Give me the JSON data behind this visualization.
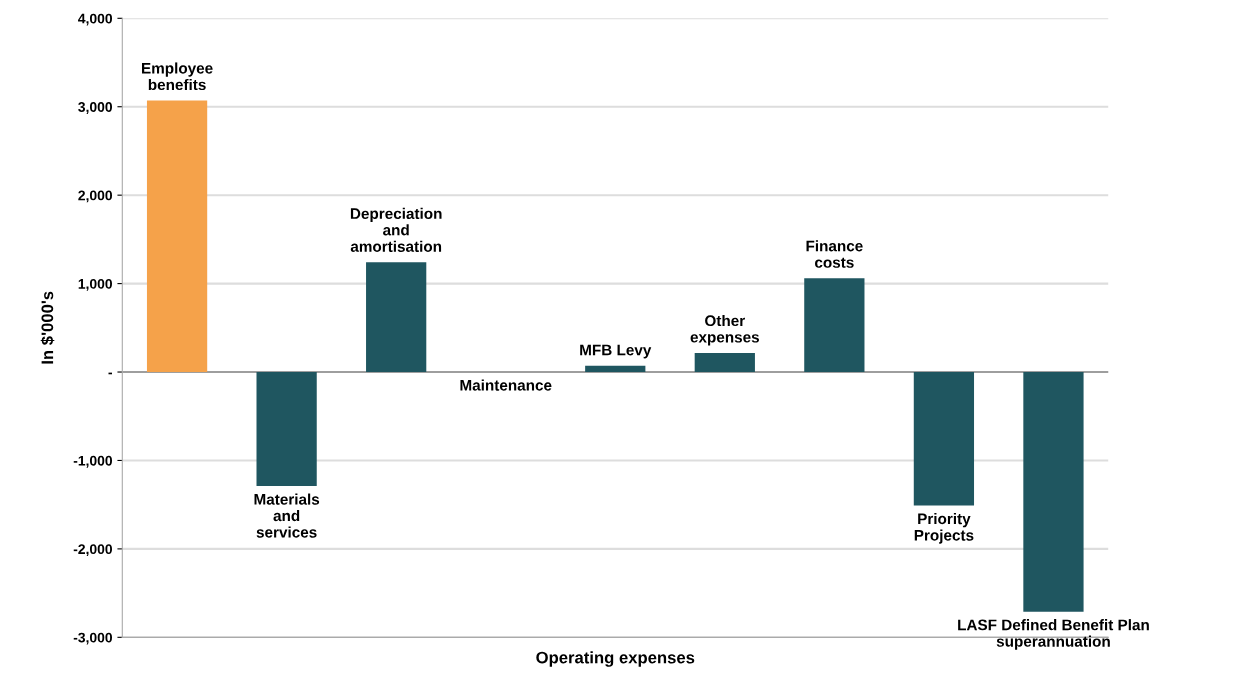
{
  "chart_data": {
    "type": "bar",
    "xlabel": "Operating expenses",
    "ylabel": "In $'000's",
    "categories": [
      "Employee\nbenefits",
      "Materials\nand\nservices",
      "Depreciation\nand\namortisation",
      "Maintenance",
      "MFB Levy",
      "Other\nexpenses",
      "Finance\ncosts",
      "Priority\nProjects",
      "LASF Defined Benefit Plan\nsuperannuation"
    ],
    "values": [
      3070,
      -1290,
      1240,
      0,
      70,
      215,
      1060,
      -1510,
      -2710
    ],
    "colors": [
      "#f5a24a",
      "#1f5660",
      "#1f5660",
      "#1f5660",
      "#1f5660",
      "#1f5660",
      "#1f5660",
      "#1f5660",
      "#1f5660"
    ],
    "ylim": [
      -3000,
      4000
    ],
    "yticks": [
      {
        "value": -3000,
        "label": "-3,000"
      },
      {
        "value": -2000,
        "label": "-2,000"
      },
      {
        "value": -1000,
        "label": "-1,000"
      },
      {
        "value": 0,
        "label": "-"
      },
      {
        "value": 1000,
        "label": "1,000"
      },
      {
        "value": 2000,
        "label": "2,000"
      },
      {
        "value": 3000,
        "label": "3,000"
      },
      {
        "value": 4000,
        "label": "4,000"
      }
    ],
    "grid": "y",
    "legend": false
  }
}
